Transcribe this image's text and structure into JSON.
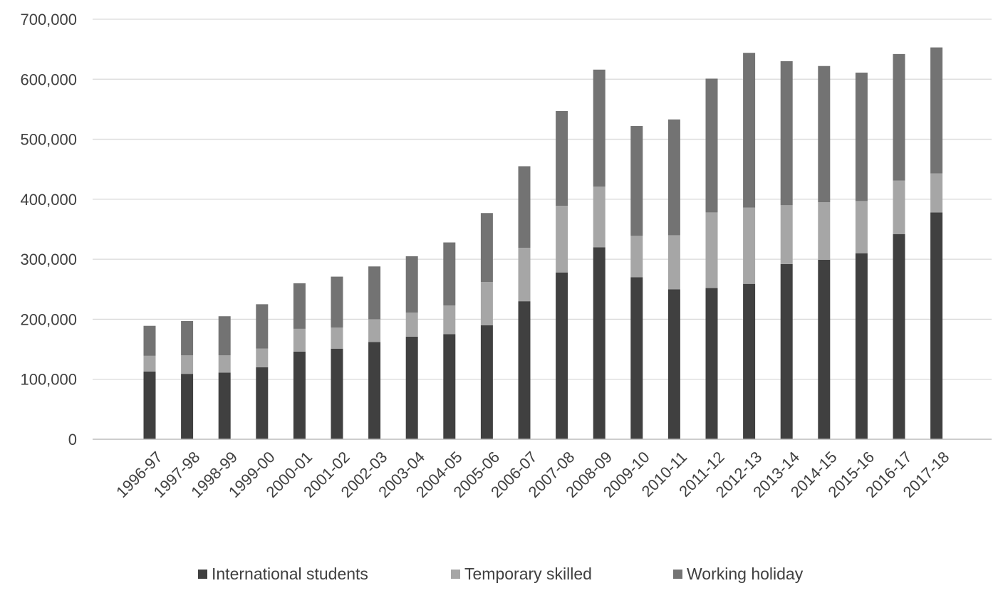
{
  "chart_data": {
    "type": "bar",
    "stacked": true,
    "title": "",
    "xlabel": "",
    "ylabel": "",
    "ylim": [
      0,
      700000
    ],
    "yticks": [
      "0",
      "100,000",
      "200,000",
      "300,000",
      "400,000",
      "500,000",
      "600,000",
      "700,000"
    ],
    "grid": true,
    "legend_position": "bottom",
    "categories": [
      "1996-97",
      "1997-98",
      "1998-99",
      "1999-00",
      "2000-01",
      "2001-02",
      "2002-03",
      "2003-04",
      "2004-05",
      "2005-06",
      "2006-07",
      "2007-08",
      "2008-09",
      "2009-10",
      "2010-11",
      "2011-12",
      "2012-13",
      "2013-14",
      "2014-15",
      "2015-16",
      "2016-17",
      "2017-18"
    ],
    "series": [
      {
        "name": "International students",
        "color": "#404040",
        "values": [
          113000,
          109000,
          111000,
          120000,
          146000,
          151000,
          162000,
          171000,
          175000,
          190000,
          230000,
          278000,
          320000,
          270000,
          250000,
          252000,
          259000,
          292000,
          299000,
          310000,
          342000,
          378000
        ]
      },
      {
        "name": "Temporary skilled",
        "color": "#a6a6a6",
        "values": [
          26000,
          31000,
          29000,
          31000,
          38000,
          35000,
          38000,
          40000,
          48000,
          72000,
          89000,
          111000,
          101000,
          69000,
          90000,
          126000,
          127000,
          98000,
          96000,
          87000,
          89000,
          65000
        ]
      },
      {
        "name": "Working holiday",
        "color": "#737373",
        "values": [
          50000,
          57000,
          65000,
          74000,
          76000,
          85000,
          88000,
          94000,
          105000,
          115000,
          136000,
          158000,
          195000,
          183000,
          193000,
          223000,
          258000,
          240000,
          227000,
          214000,
          211000,
          210000
        ]
      }
    ]
  }
}
